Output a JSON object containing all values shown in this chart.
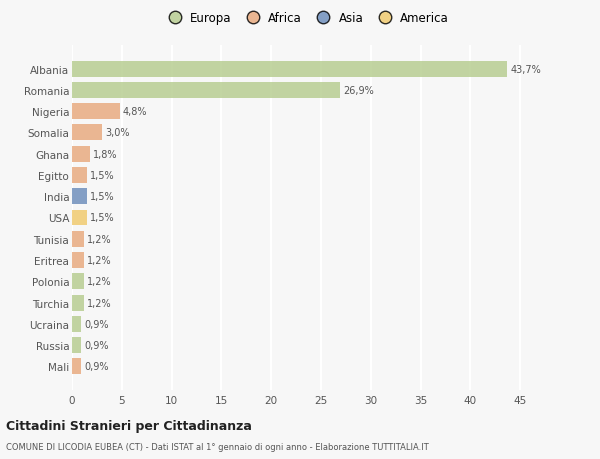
{
  "countries": [
    "Albania",
    "Romania",
    "Nigeria",
    "Somalia",
    "Ghana",
    "Egitto",
    "India",
    "USA",
    "Tunisia",
    "Eritrea",
    "Polonia",
    "Turchia",
    "Ucraina",
    "Russia",
    "Mali"
  ],
  "values": [
    43.7,
    26.9,
    4.8,
    3.0,
    1.8,
    1.5,
    1.5,
    1.5,
    1.2,
    1.2,
    1.2,
    1.2,
    0.9,
    0.9,
    0.9
  ],
  "labels": [
    "43,7%",
    "26,9%",
    "4,8%",
    "3,0%",
    "1,8%",
    "1,5%",
    "1,5%",
    "1,5%",
    "1,2%",
    "1,2%",
    "1,2%",
    "1,2%",
    "0,9%",
    "0,9%",
    "0,9%"
  ],
  "colors": [
    "#b5cc8e",
    "#b5cc8e",
    "#e8a87c",
    "#e8a87c",
    "#e8a87c",
    "#e8a87c",
    "#6b8cba",
    "#f0c96b",
    "#e8a87c",
    "#e8a87c",
    "#b5cc8e",
    "#b5cc8e",
    "#b5cc8e",
    "#b5cc8e",
    "#e8a87c"
  ],
  "legend_labels": [
    "Europa",
    "Africa",
    "Asia",
    "America"
  ],
  "legend_colors": [
    "#b5cc8e",
    "#e8a87c",
    "#6b8cba",
    "#f0c96b"
  ],
  "title": "Cittadini Stranieri per Cittadinanza",
  "subtitle": "COMUNE DI LICODIA EUBEA (CT) - Dati ISTAT al 1° gennaio di ogni anno - Elaborazione TUTTITALIA.IT",
  "xlim": [
    0,
    47
  ],
  "xticks": [
    0,
    5,
    10,
    15,
    20,
    25,
    30,
    35,
    40,
    45
  ],
  "bg_color": "#f7f7f7",
  "grid_color": "#ffffff",
  "bar_height": 0.75
}
